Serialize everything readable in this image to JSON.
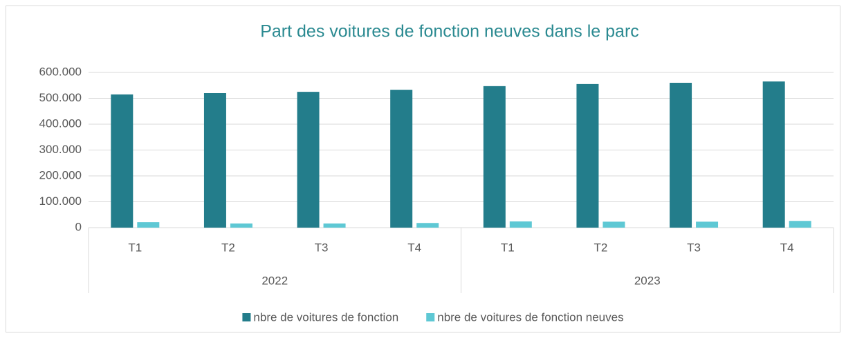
{
  "chart_data": {
    "type": "bar",
    "title": "Part des voitures de fonction neuves dans le parc",
    "categories": [
      "T1",
      "T2",
      "T3",
      "T4",
      "T1",
      "T2",
      "T3",
      "T4"
    ],
    "groups": [
      "2022",
      "2023"
    ],
    "series": [
      {
        "name": "nbre de voitures de fonction",
        "color": "#237d8b",
        "values": [
          515000,
          520000,
          525000,
          533000,
          547000,
          555000,
          560000,
          565000
        ]
      },
      {
        "name": "nbre de voitures de fonction neuves",
        "color": "#5ec8d4",
        "values": [
          21000,
          16000,
          16000,
          18000,
          24000,
          23000,
          23000,
          26000
        ]
      }
    ],
    "ylim": [
      0,
      600000
    ],
    "yticks": [
      0,
      {
        "value": 100000,
        "label": "100.000"
      },
      {
        "value": 200000,
        "label": "200.000"
      },
      {
        "value": 300000,
        "label": "300.000"
      },
      {
        "value": 400000,
        "label": "400.000"
      },
      {
        "value": 500000,
        "label": "500.000"
      },
      {
        "value": 600000,
        "label": "600.000"
      }
    ],
    "grid": true,
    "legend": "bottom"
  }
}
